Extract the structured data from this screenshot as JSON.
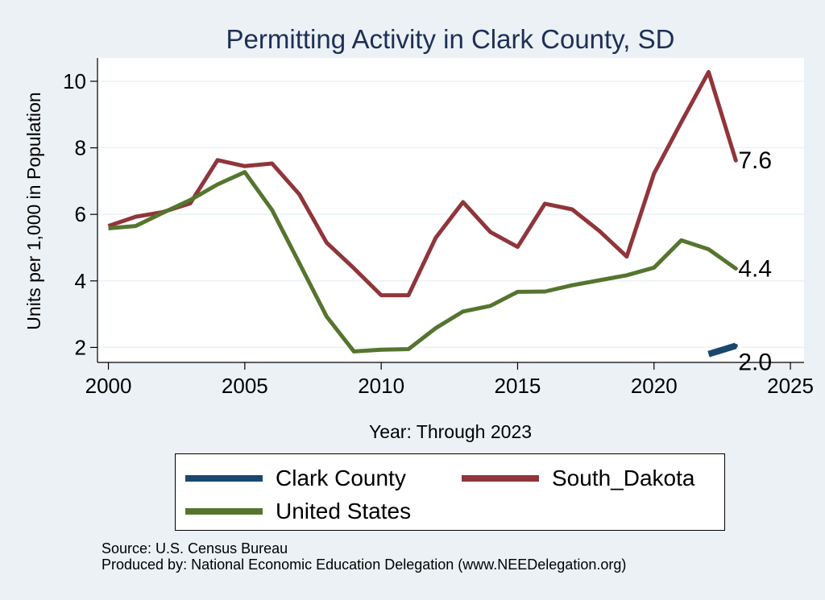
{
  "chart_data": {
    "type": "line",
    "title": "Permitting Activity in Clark County, SD",
    "xlabel": "Year: Through 2023",
    "ylabel": "Units per 1,000 in Population",
    "xlim": [
      1999.6,
      2025.5
    ],
    "ylim": [
      1.55,
      10.7
    ],
    "x_ticks": [
      2000,
      2005,
      2010,
      2015,
      2020,
      2025
    ],
    "y_ticks": [
      2,
      4,
      6,
      8,
      10
    ],
    "grid": true,
    "legend_position": "bottom",
    "series": [
      {
        "name": "Clark County",
        "color": "#1a476f",
        "x": [
          2022,
          2023
        ],
        "values": [
          1.8,
          2.05
        ],
        "end_label": "2.0"
      },
      {
        "name": "South_Dakota",
        "color": "#90353b",
        "x": [
          2000,
          2001,
          2002,
          2003,
          2004,
          2005,
          2006,
          2007,
          2008,
          2009,
          2010,
          2011,
          2012,
          2013,
          2014,
          2015,
          2016,
          2017,
          2018,
          2019,
          2020,
          2021,
          2022,
          2023
        ],
        "values": [
          5.65,
          5.93,
          6.07,
          6.33,
          7.63,
          7.45,
          7.53,
          6.6,
          5.15,
          4.38,
          3.57,
          3.57,
          5.3,
          6.37,
          5.47,
          5.02,
          6.32,
          6.15,
          5.5,
          4.73,
          7.23,
          8.77,
          10.28,
          7.62
        ],
        "end_label": "7.6"
      },
      {
        "name": "United States",
        "color": "#55752f",
        "x": [
          2000,
          2001,
          2002,
          2003,
          2004,
          2005,
          2006,
          2007,
          2008,
          2009,
          2010,
          2011,
          2012,
          2013,
          2014,
          2015,
          2016,
          2017,
          2018,
          2019,
          2020,
          2021,
          2022,
          2023
        ],
        "values": [
          5.58,
          5.65,
          6.05,
          6.43,
          6.9,
          7.27,
          6.13,
          4.53,
          2.93,
          1.88,
          1.93,
          1.95,
          2.58,
          3.08,
          3.25,
          3.67,
          3.68,
          3.87,
          4.02,
          4.17,
          4.4,
          5.22,
          4.95,
          4.37
        ],
        "end_label": "4.4"
      }
    ]
  },
  "legend": {
    "items": [
      {
        "label": "Clark County",
        "color": "#1a476f"
      },
      {
        "label": "South_Dakota",
        "color": "#90353b"
      },
      {
        "label": "United States",
        "color": "#55752f"
      }
    ]
  },
  "credits": {
    "source": "Source: U.S. Census Bureau",
    "produced_by": "Produced by: National Economic Education Delegation (www.NEEDelegation.org)"
  },
  "colors": {
    "background": "#ebf1f5",
    "plot_background": "#ffffff",
    "grid": "#eaf2f3",
    "title": "#1e2f56"
  }
}
